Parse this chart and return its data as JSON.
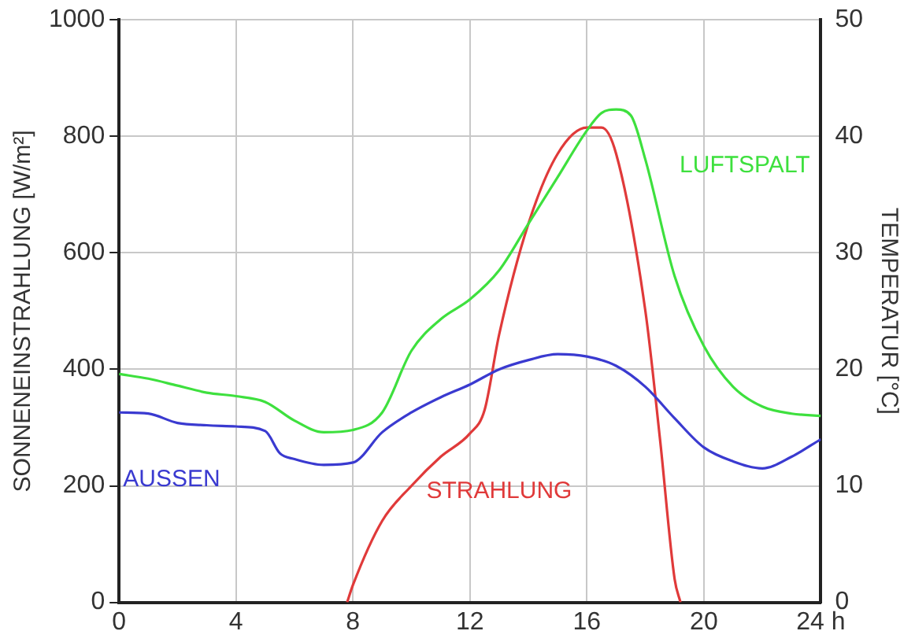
{
  "chart_data": {
    "type": "line",
    "ylabel": "SONNENEINSTRAHLUNG [W/m²]",
    "y2label": "TEMPERATUR [°C]",
    "xlim": [
      0,
      24
    ],
    "xticks": [
      0,
      4,
      8,
      12,
      16,
      20,
      {
        "value": 24,
        "label": "24 h"
      }
    ],
    "ylim": [
      0,
      1000
    ],
    "yticks": [
      0,
      200,
      400,
      600,
      800,
      1000
    ],
    "y2lim": [
      0,
      50
    ],
    "y2ticks": [
      0,
      10,
      20,
      30,
      40,
      50
    ],
    "grid": true,
    "legend": false,
    "marker": "none",
    "line_style": "solid",
    "series": [
      {
        "name": "LUFTSPALT",
        "color": "#3ee03e",
        "axis": "y2",
        "x": [
          0,
          1,
          2,
          3,
          4,
          5,
          6,
          7,
          8,
          9,
          10,
          11,
          12,
          13,
          14,
          15,
          16,
          16.5,
          17,
          17.5,
          18,
          19,
          20,
          21,
          22,
          23,
          24
        ],
        "values": [
          19.6,
          19.2,
          18.6,
          18.0,
          17.7,
          17.2,
          15.6,
          14.6,
          14.8,
          16.3,
          21.6,
          24.3,
          26,
          28.5,
          32.5,
          36.5,
          40.5,
          42,
          42.3,
          41.8,
          38,
          28,
          22,
          18.5,
          16.8,
          16.2,
          16
        ]
      },
      {
        "name": "AUSSEN",
        "color": "#3a3ad0",
        "axis": "y2",
        "x": [
          0,
          1,
          2,
          3,
          4,
          5,
          5.5,
          6,
          7,
          8,
          9,
          10,
          11,
          12,
          13,
          14,
          15,
          16,
          17,
          18,
          19,
          20,
          21,
          22,
          23,
          24
        ],
        "values": [
          16.3,
          16.2,
          15.4,
          15.2,
          15.1,
          14.7,
          12.8,
          12.3,
          11.8,
          12,
          14.6,
          16.3,
          17.6,
          18.7,
          20,
          20.8,
          21.3,
          21.1,
          20.3,
          18.5,
          15.8,
          13.3,
          12.1,
          11.5,
          12.5,
          14
        ]
      },
      {
        "name": "STRAHLUNG",
        "color": "#e03a3a",
        "axis": "y",
        "x": [
          7.8,
          8,
          9,
          10,
          11,
          12,
          12.5,
          13,
          14,
          15,
          16,
          16.5,
          17,
          18,
          18.5,
          19,
          19.2
        ],
        "values": [
          0,
          30,
          140,
          200,
          250,
          290,
          330,
          460,
          650,
          770,
          815,
          815,
          770,
          500,
          280,
          40,
          0
        ]
      }
    ]
  }
}
